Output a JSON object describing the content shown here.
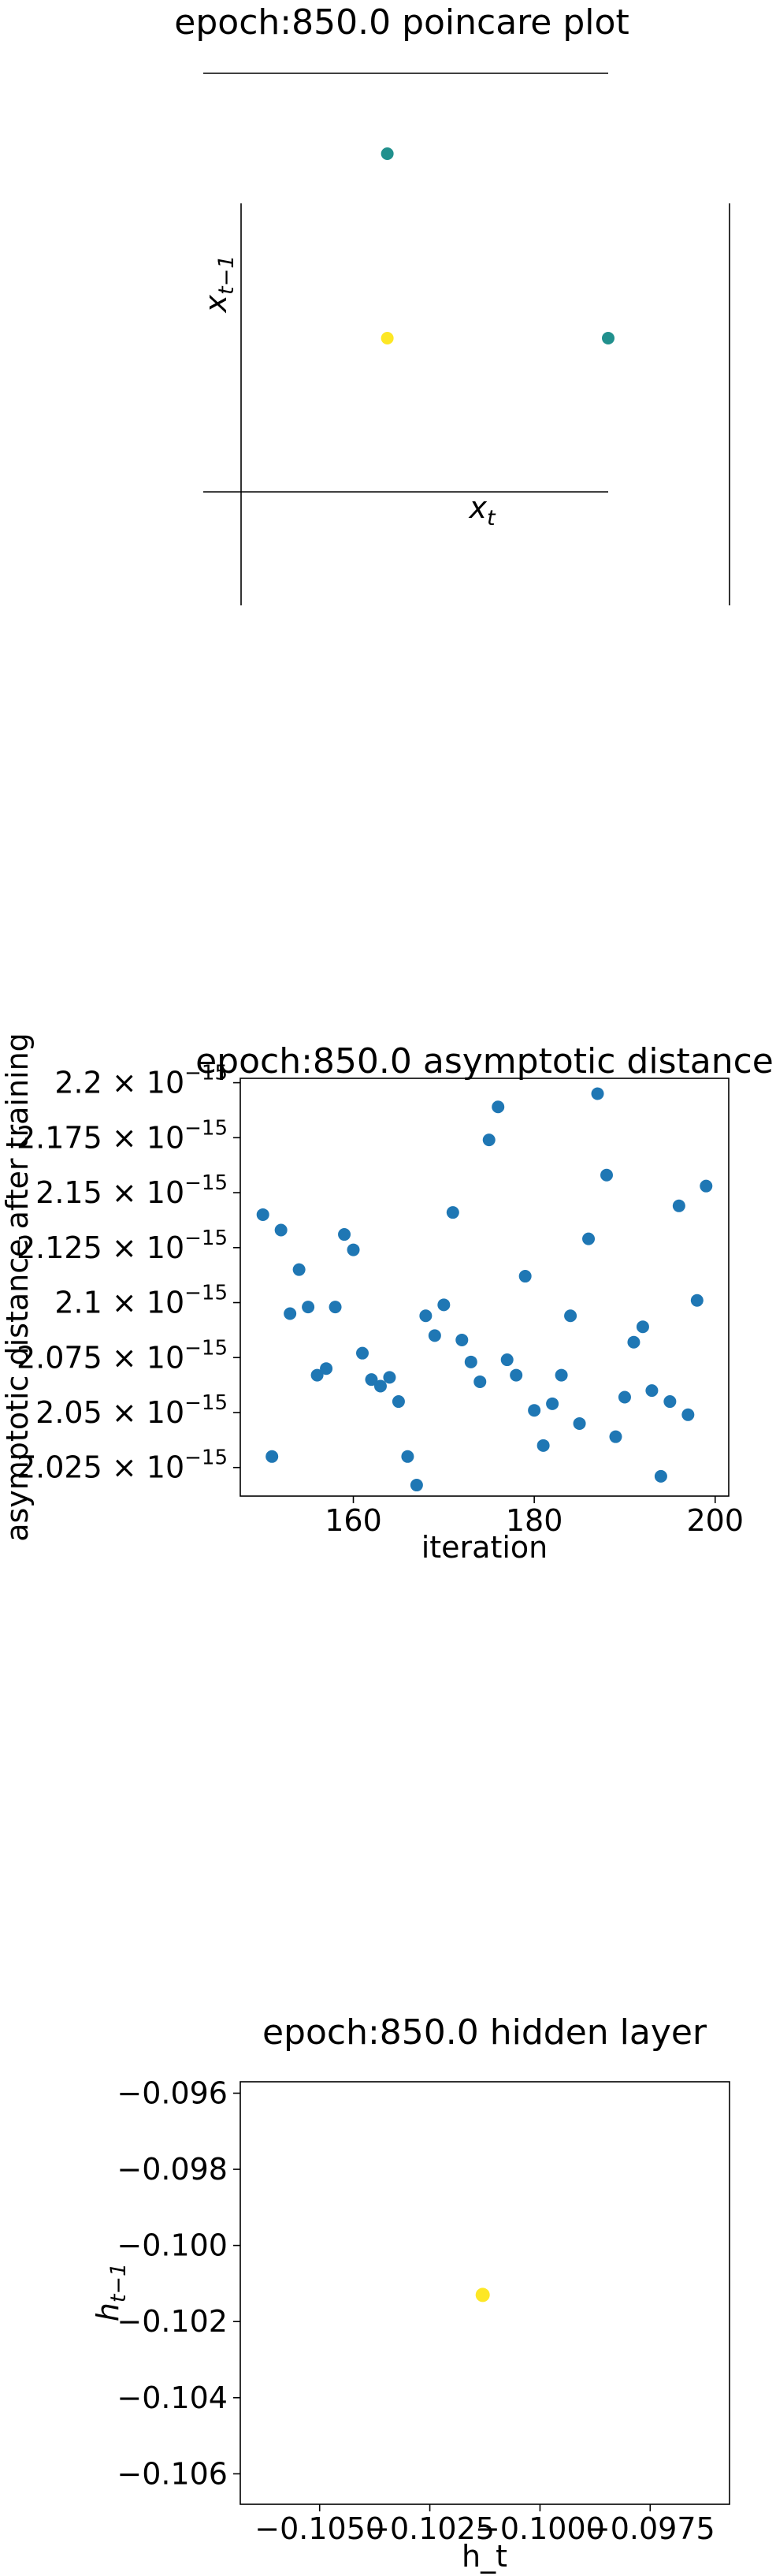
{
  "chart_data": [
    {
      "type": "scatter",
      "title": "epoch:850.0 poincare plot",
      "xlabel": "x_t",
      "ylabel": "x_{t-1}",
      "xlim": [
        -0.1,
        1.0
      ],
      "ylim": [
        -0.1,
        1.0
      ],
      "axes_style": "centered spines at zero, no ticks",
      "points": [
        {
          "x": 0.4,
          "y": 1.0,
          "color": "#21908d"
        },
        {
          "x": 0.4,
          "y": 0.4,
          "color": "#fde725"
        },
        {
          "x": 1.0,
          "y": 0.4,
          "color": "#21908d"
        }
      ]
    },
    {
      "type": "scatter",
      "title": "epoch:850.0 asymptotic distance",
      "xlabel": "iteration",
      "ylabel": "asymptotic distance after training",
      "xlim": [
        147.5,
        201.5
      ],
      "ylim": [
        2.012e-15,
        2.202e-15
      ],
      "xticks": [
        160,
        180,
        200
      ],
      "yticks": [
        {
          "value": 2.025e-15,
          "mantissa": "2.025"
        },
        {
          "value": 2.05e-15,
          "mantissa": "2.05"
        },
        {
          "value": 2.075e-15,
          "mantissa": "2.075"
        },
        {
          "value": 2.1e-15,
          "mantissa": "2.1"
        },
        {
          "value": 2.125e-15,
          "mantissa": "2.125"
        },
        {
          "value": 2.15e-15,
          "mantissa": "2.15"
        },
        {
          "value": 2.175e-15,
          "mantissa": "2.175"
        },
        {
          "value": 2.2e-15,
          "mantissa": "2.2"
        }
      ],
      "ytick_exponent": "−15",
      "color": "#1f77b4",
      "x": [
        150,
        151,
        152,
        153,
        154,
        155,
        156,
        157,
        158,
        159,
        160,
        161,
        162,
        163,
        164,
        165,
        166,
        167,
        168,
        169,
        170,
        171,
        172,
        173,
        174,
        175,
        176,
        177,
        178,
        179,
        180,
        181,
        182,
        183,
        184,
        185,
        186,
        187,
        188,
        189,
        190,
        191,
        192,
        193,
        194,
        195,
        196,
        197,
        198,
        199
      ],
      "y": [
        2.14e-15,
        2.03e-15,
        2.133e-15,
        2.095e-15,
        2.115e-15,
        2.098e-15,
        2.067e-15,
        2.07e-15,
        2.098e-15,
        2.131e-15,
        2.124e-15,
        2.077e-15,
        2.065e-15,
        2.062e-15,
        2.066e-15,
        2.055e-15,
        2.03e-15,
        2.017e-15,
        2.094e-15,
        2.085e-15,
        2.099e-15,
        2.141e-15,
        2.083e-15,
        2.073e-15,
        2.064e-15,
        2.174e-15,
        2.189e-15,
        2.074e-15,
        2.067e-15,
        2.112e-15,
        2.051e-15,
        2.035e-15,
        2.054e-15,
        2.067e-15,
        2.094e-15,
        2.045e-15,
        2.129e-15,
        2.195e-15,
        2.158e-15,
        2.039e-15,
        2.057e-15,
        2.082e-15,
        2.089e-15,
        2.06e-15,
        2.021e-15,
        2.055e-15,
        2.144e-15,
        2.049e-15,
        2.101e-15,
        2.153e-15
      ]
    },
    {
      "type": "scatter",
      "title": "epoch:850.0 hidden layer",
      "xlabel": "h_t",
      "ylabel": "h_{t-1}",
      "xlim": [
        -0.1068,
        -0.0957
      ],
      "ylim": [
        -0.1068,
        -0.0957
      ],
      "xticks": [
        {
          "value": -0.105,
          "label": "−0.1050"
        },
        {
          "value": -0.1025,
          "label": "−0.1025"
        },
        {
          "value": -0.1,
          "label": "−0.1000"
        },
        {
          "value": -0.0975,
          "label": "−0.0975"
        }
      ],
      "yticks": [
        {
          "value": -0.096,
          "label": "−0.096"
        },
        {
          "value": -0.098,
          "label": "−0.098"
        },
        {
          "value": -0.1,
          "label": "−0.100"
        },
        {
          "value": -0.102,
          "label": "−0.102"
        },
        {
          "value": -0.104,
          "label": "−0.104"
        },
        {
          "value": -0.106,
          "label": "−0.106"
        }
      ],
      "points": [
        {
          "x": -0.1013,
          "y": -0.1013,
          "color": "#fde725"
        }
      ]
    }
  ]
}
